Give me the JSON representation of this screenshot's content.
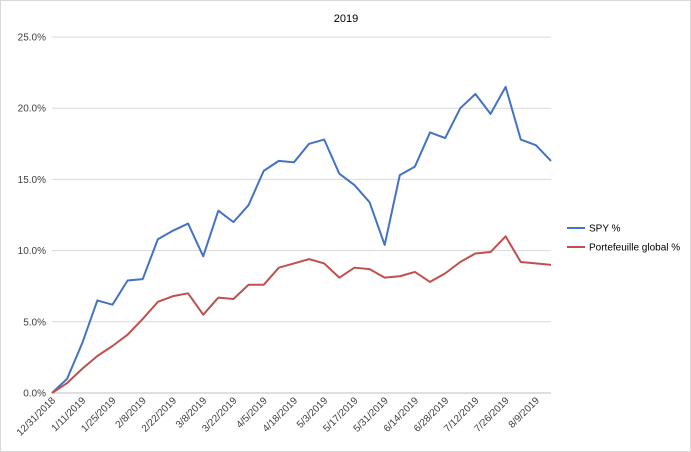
{
  "chart_data": {
    "type": "line",
    "title": "2019",
    "xlabel": "",
    "ylabel": "",
    "ylim": [
      0,
      0.25
    ],
    "y_ticks": [
      "0.0%",
      "5.0%",
      "10.0%",
      "15.0%",
      "20.0%",
      "25.0%"
    ],
    "grid": "horizontal",
    "legend_position": "right",
    "x_tick_labels": [
      "12/31/2018",
      "1/11/2019",
      "1/25/2019",
      "2/8/2019",
      "2/22/2019",
      "3/8/2019",
      "3/22/2019",
      "4/5/2019",
      "4/18/2019",
      "5/3/2019",
      "5/17/2019",
      "5/31/2019",
      "6/14/2019",
      "6/28/2019",
      "7/12/2019",
      "7/26/2019",
      "8/9/2019"
    ],
    "x": [
      "12/31/2018",
      "1/4/2019",
      "1/11/2019",
      "1/18/2019",
      "1/25/2019",
      "2/1/2019",
      "2/8/2019",
      "2/15/2019",
      "2/22/2019",
      "3/1/2019",
      "3/8/2019",
      "3/15/2019",
      "3/22/2019",
      "3/29/2019",
      "4/5/2019",
      "4/12/2019",
      "4/18/2019",
      "4/26/2019",
      "5/3/2019",
      "5/10/2019",
      "5/17/2019",
      "5/24/2019",
      "5/31/2019",
      "6/7/2019",
      "6/14/2019",
      "6/21/2019",
      "6/28/2019",
      "7/5/2019",
      "7/12/2019",
      "7/19/2019",
      "7/26/2019",
      "8/2/2019",
      "8/9/2019",
      "8/16/2019"
    ],
    "series": [
      {
        "name": "SPY %",
        "color": "#4472c4",
        "values": [
          0.0,
          0.01,
          0.035,
          0.065,
          0.062,
          0.079,
          0.08,
          0.108,
          0.114,
          0.119,
          0.096,
          0.128,
          0.12,
          0.132,
          0.156,
          0.163,
          0.162,
          0.175,
          0.178,
          0.154,
          0.146,
          0.134,
          0.104,
          0.153,
          0.159,
          0.183,
          0.179,
          0.2,
          0.21,
          0.196,
          0.215,
          0.178,
          0.174,
          0.163
        ]
      },
      {
        "name": "Portefeuille global %",
        "color": "#c0504d",
        "values": [
          0.0,
          0.007,
          0.017,
          0.026,
          0.033,
          0.041,
          0.052,
          0.064,
          0.068,
          0.07,
          0.055,
          0.067,
          0.066,
          0.076,
          0.076,
          0.088,
          0.091,
          0.094,
          0.091,
          0.081,
          0.088,
          0.087,
          0.081,
          0.082,
          0.085,
          0.078,
          0.084,
          0.092,
          0.098,
          0.099,
          0.11,
          0.092,
          0.091,
          0.09
        ]
      }
    ]
  }
}
